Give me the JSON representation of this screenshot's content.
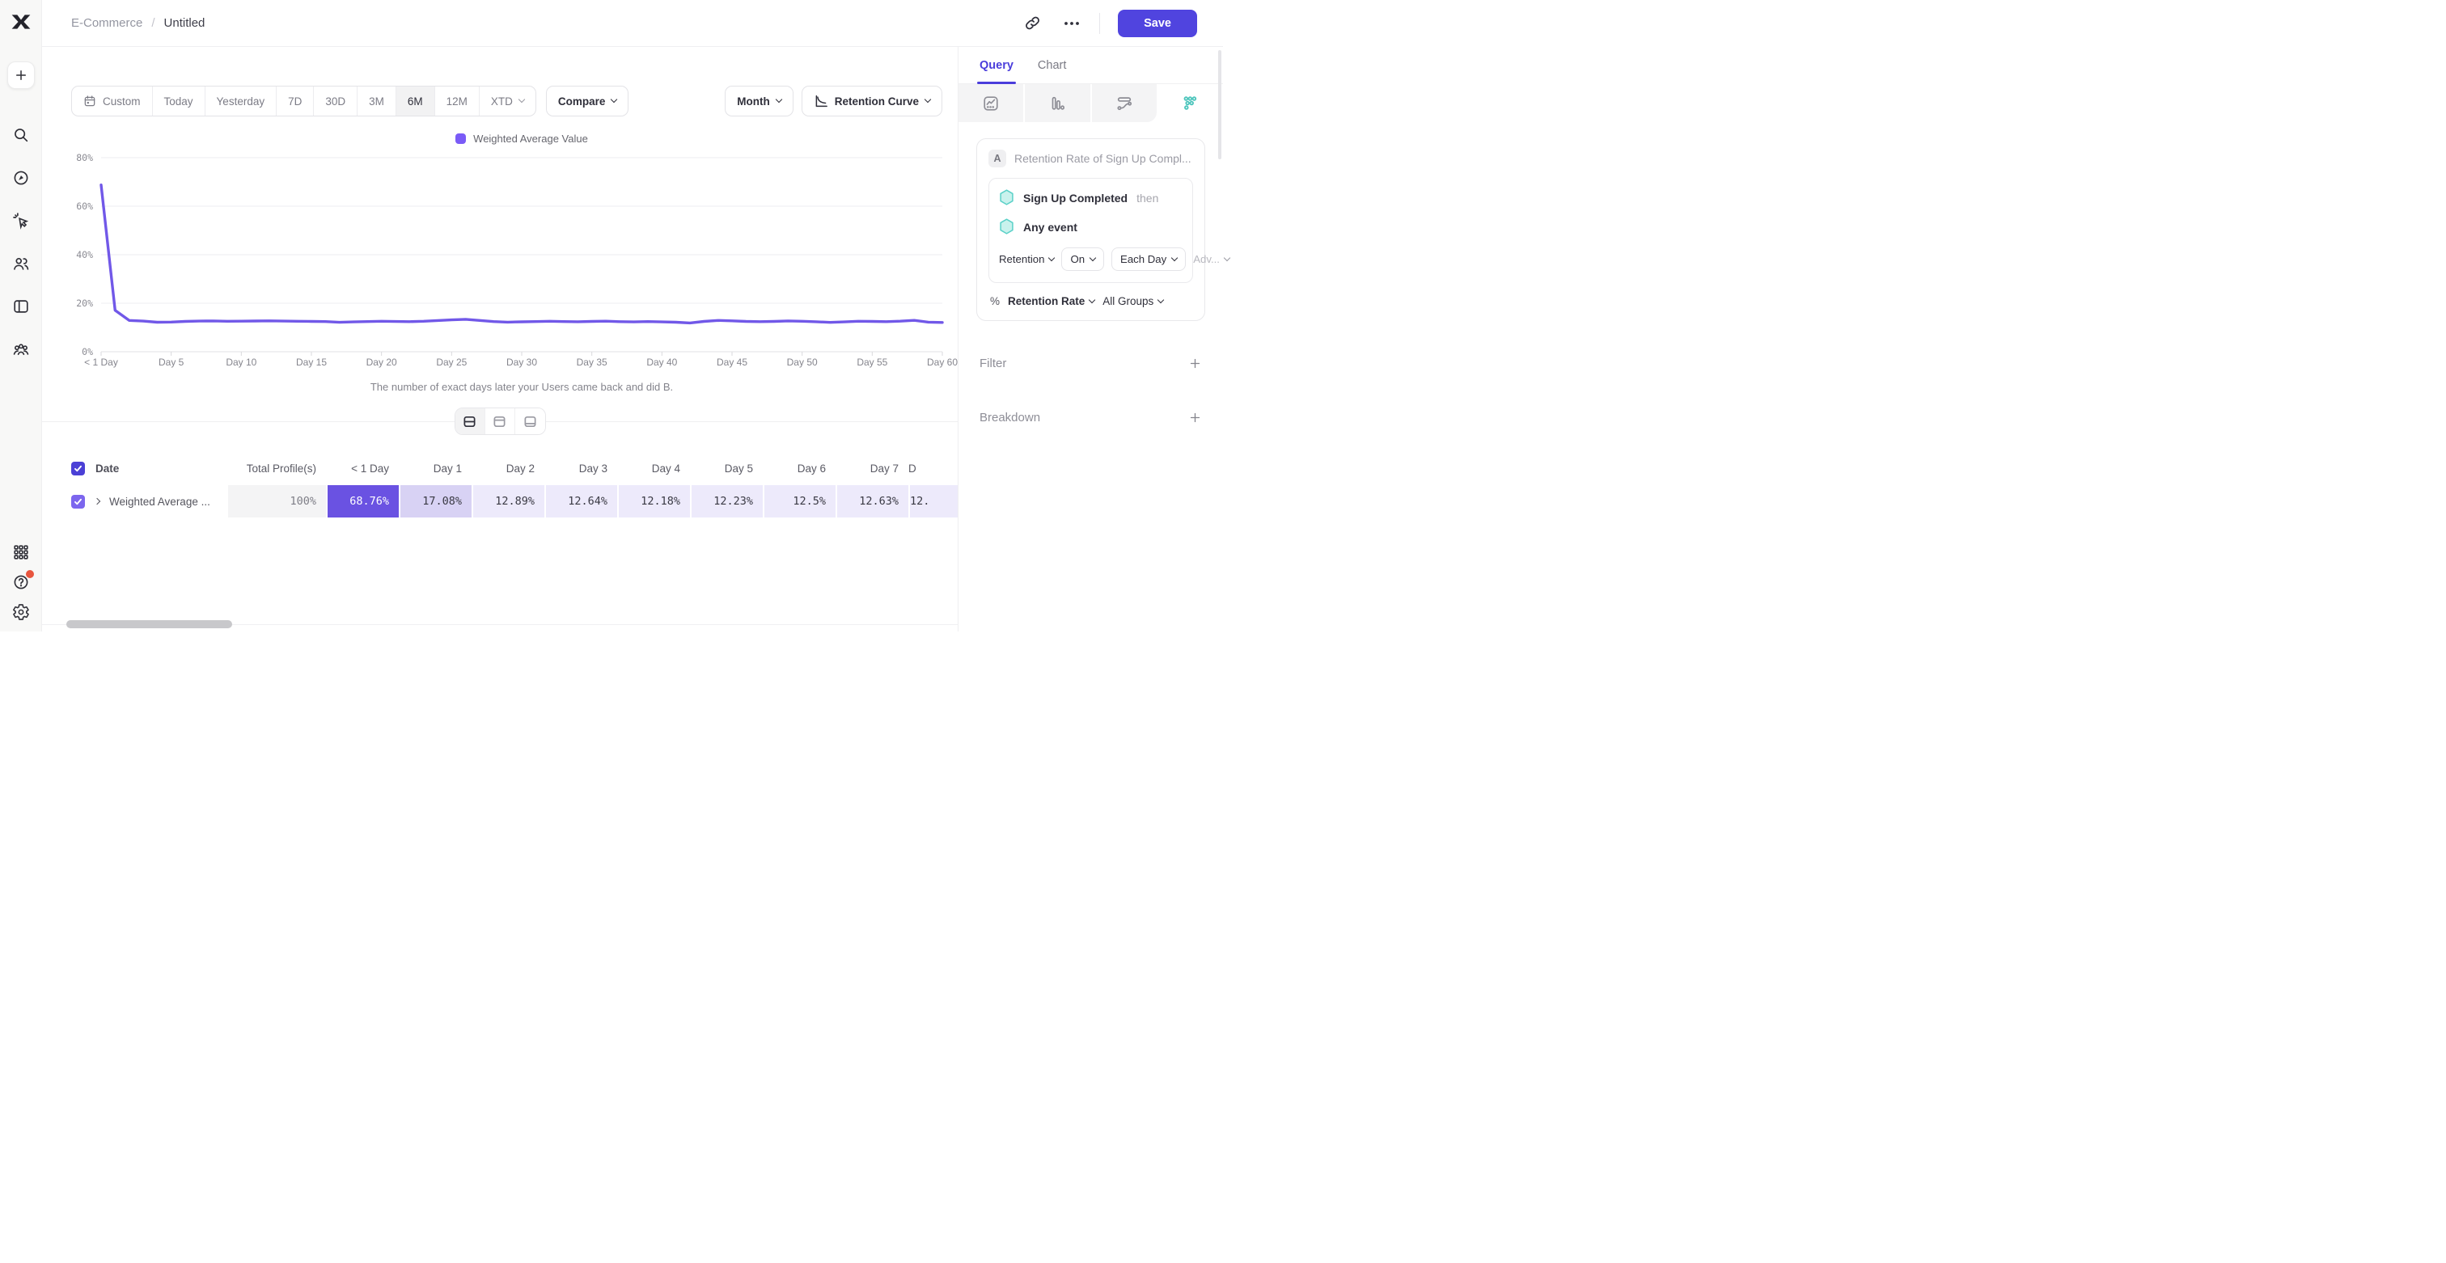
{
  "header": {
    "breadcrumb": [
      "E-Commerce",
      "Untitled"
    ],
    "breadcrumb_sep": "/",
    "save_label": "Save",
    "icons": [
      "link-icon",
      "ellipsis-icon"
    ]
  },
  "sidebar": {
    "icons": [
      "mixpanel-logo",
      "plus",
      "search",
      "compass",
      "cursor-click",
      "users",
      "board",
      "cohorts",
      "apps-grid",
      "help",
      "settings"
    ]
  },
  "toolbar": {
    "date_ranges": [
      "Custom",
      "Today",
      "Yesterday",
      "7D",
      "30D",
      "3M",
      "6M",
      "12M",
      "XTD"
    ],
    "active_range": "6M",
    "compare_label": "Compare",
    "granularity": "Month",
    "chart_type": "Retention Curve"
  },
  "chart": {
    "legend": "Weighted Average Value",
    "y_ticks": [
      "80%",
      "60%",
      "40%",
      "20%",
      "0%"
    ],
    "x_ticks": [
      "< 1 Day",
      "Day 5",
      "Day 10",
      "Day 15",
      "Day 20",
      "Day 25",
      "Day 30",
      "Day 35",
      "Day 40",
      "Day 45",
      "Day 50",
      "Day 55",
      "Day 60"
    ],
    "caption": "The number of exact days later your Users came back and did B."
  },
  "chart_data": {
    "type": "line",
    "title": "Retention Curve - Weighted Average Value",
    "color": "#7158E8",
    "ylim": [
      0,
      80
    ],
    "y_unit": "%",
    "grid": "horizontal",
    "legend_position": "top-center",
    "categories": [
      "< 1 Day",
      "Day 1",
      "Day 2",
      "Day 3",
      "Day 4",
      "Day 5",
      "Day 6",
      "Day 7",
      "Day 8",
      "Day 9",
      "Day 10",
      "Day 11",
      "Day 12",
      "Day 13",
      "Day 14",
      "Day 15",
      "Day 16",
      "Day 17",
      "Day 18",
      "Day 19",
      "Day 20",
      "Day 21",
      "Day 22",
      "Day 23",
      "Day 24",
      "Day 25",
      "Day 26",
      "Day 27",
      "Day 28",
      "Day 29",
      "Day 30",
      "Day 31",
      "Day 32",
      "Day 33",
      "Day 34",
      "Day 35",
      "Day 36",
      "Day 37",
      "Day 38",
      "Day 39",
      "Day 40",
      "Day 41",
      "Day 42",
      "Day 43",
      "Day 44",
      "Day 45",
      "Day 46",
      "Day 47",
      "Day 48",
      "Day 49",
      "Day 50",
      "Day 51",
      "Day 52",
      "Day 53",
      "Day 54",
      "Day 55",
      "Day 56",
      "Day 57",
      "Day 58",
      "Day 59",
      "Day 60"
    ],
    "values": [
      68.76,
      17.08,
      12.89,
      12.64,
      12.18,
      12.23,
      12.5,
      12.63,
      12.7,
      12.55,
      12.6,
      12.66,
      12.72,
      12.64,
      12.55,
      12.5,
      12.45,
      12.12,
      12.3,
      12.45,
      12.55,
      12.48,
      12.4,
      12.58,
      12.85,
      13.15,
      13.35,
      12.9,
      12.45,
      12.2,
      12.32,
      12.45,
      12.55,
      12.42,
      12.35,
      12.5,
      12.6,
      12.4,
      12.3,
      12.42,
      12.3,
      12.18,
      11.85,
      12.5,
      12.9,
      12.75,
      12.5,
      12.4,
      12.5,
      12.7,
      12.58,
      12.35,
      12.1,
      12.3,
      12.55,
      12.5,
      12.4,
      12.6,
      12.95,
      12.2,
      12.05
    ]
  },
  "table": {
    "date_header": "Date",
    "row_label": "Weighted Average ...",
    "columns": [
      {
        "header": "Total Profile(s)",
        "value": "100%"
      },
      {
        "header": "< 1 Day",
        "value": "68.76%"
      },
      {
        "header": "Day 1",
        "value": "17.08%"
      },
      {
        "header": "Day 2",
        "value": "12.89%"
      },
      {
        "header": "Day 3",
        "value": "12.64%"
      },
      {
        "header": "Day 4",
        "value": "12.18%"
      },
      {
        "header": "Day 5",
        "value": "12.23%"
      },
      {
        "header": "Day 6",
        "value": "12.5%"
      },
      {
        "header": "Day 7",
        "value": "12.63%"
      },
      {
        "header": "D",
        "value": "12."
      }
    ]
  },
  "panel": {
    "tabs": [
      "Query",
      "Chart"
    ],
    "active_tab": "Query",
    "report_type_icons": [
      "insights-icon",
      "funnels-icon",
      "flows-icon",
      "retention-icon"
    ],
    "active_report_type": "retention",
    "query": {
      "badge": "A",
      "title": "Retention Rate of Sign Up Compl...",
      "event_a": "Sign Up Completed",
      "then_label": "then",
      "event_b": "Any event",
      "retention_label": "Retention",
      "on_label": "On",
      "each_day_label": "Each Day",
      "advanced_label": "Adv...",
      "metric_prefix": "%",
      "metric": "Retention Rate",
      "groups": "All Groups"
    },
    "filter_label": "Filter",
    "breakdown_label": "Breakdown"
  },
  "colors": {
    "accent": "#5044DF",
    "line": "#7158E8",
    "cell_strong": "#6A52E2",
    "cell_mid": "#D8D2F4",
    "cell_light": "#EDEAFB",
    "teal": "#4DC5BC"
  }
}
